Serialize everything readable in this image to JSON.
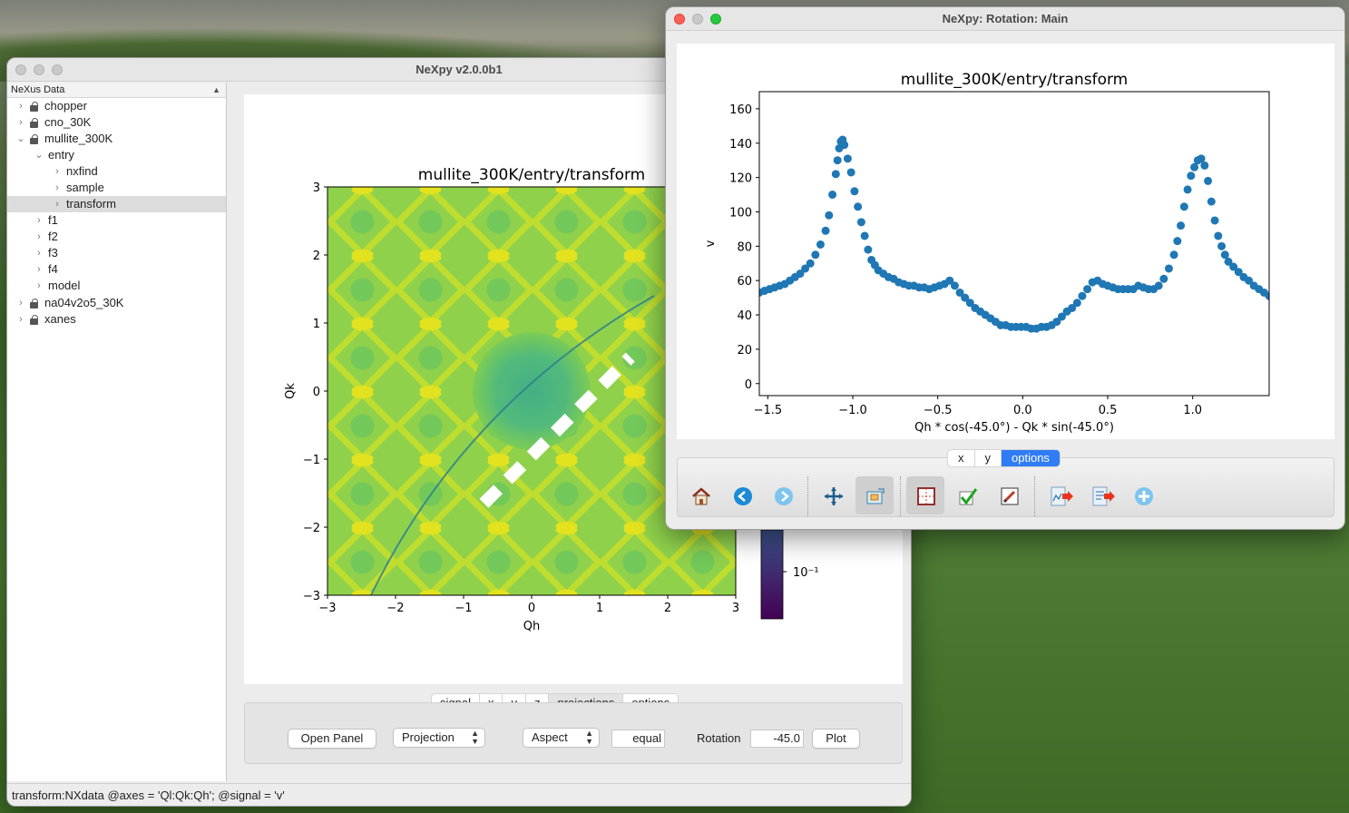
{
  "main_window": {
    "title": "NeXpy v2.0.0b1",
    "tree_header": "NeXus Data",
    "tree": [
      {
        "label": "chopper",
        "level": 0,
        "expanded": false,
        "locked": true,
        "selected": false
      },
      {
        "label": "cno_30K",
        "level": 0,
        "expanded": false,
        "locked": true,
        "selected": false
      },
      {
        "label": "mullite_300K",
        "level": 0,
        "expanded": true,
        "locked": true,
        "selected": false
      },
      {
        "label": "entry",
        "level": 1,
        "expanded": true,
        "locked": false,
        "selected": false
      },
      {
        "label": "nxfind",
        "level": 2,
        "expanded": false,
        "locked": false,
        "selected": false
      },
      {
        "label": "sample",
        "level": 2,
        "expanded": false,
        "locked": false,
        "selected": false
      },
      {
        "label": "transform",
        "level": 2,
        "expanded": false,
        "locked": false,
        "selected": true
      },
      {
        "label": "f1",
        "level": 1,
        "expanded": false,
        "locked": false,
        "selected": false
      },
      {
        "label": "f2",
        "level": 1,
        "expanded": false,
        "locked": false,
        "selected": false
      },
      {
        "label": "f3",
        "level": 1,
        "expanded": false,
        "locked": false,
        "selected": false
      },
      {
        "label": "f4",
        "level": 1,
        "expanded": false,
        "locked": false,
        "selected": false
      },
      {
        "label": "model",
        "level": 1,
        "expanded": false,
        "locked": false,
        "selected": false
      },
      {
        "label": "na04v2o5_30K",
        "level": 0,
        "expanded": false,
        "locked": true,
        "selected": false
      },
      {
        "label": "xanes",
        "level": 0,
        "expanded": false,
        "locked": true,
        "selected": false
      }
    ],
    "tabs": [
      "signal",
      "x",
      "y",
      "z",
      "projections",
      "options"
    ],
    "active_tab": "projections",
    "controls": {
      "open_panel": "Open Panel",
      "projection": "Projection",
      "aspect": "Aspect",
      "aspect_value": "equal",
      "rotation_label": "Rotation",
      "rotation_value": "-45.0",
      "plot": "Plot"
    },
    "status": "transform:NXdata @axes = 'Ql:Qk:Qh'; @signal = 'v'"
  },
  "rotation_window": {
    "title": "NeXpy: Rotation: Main",
    "tabs": [
      "x",
      "y",
      "options"
    ],
    "active_tab": "options",
    "toolbar": [
      "home-icon",
      "back-icon",
      "forward-icon",
      "pan-icon",
      "zoom-icon",
      "subplots-icon",
      "check-icon",
      "edit-icon",
      "export-icon",
      "save-icon",
      "add-icon"
    ]
  },
  "chart_data": [
    {
      "type": "heatmap",
      "title": "mullite_300K/entry/transform",
      "xlabel": "Qh",
      "ylabel": "Qk",
      "xlim": [
        -3,
        3
      ],
      "ylim": [
        -3,
        3
      ],
      "xticks": [
        "−3",
        "−2",
        "−1",
        "0",
        "1",
        "2",
        "3"
      ],
      "yticks": [
        "−3",
        "−2",
        "−1",
        "0",
        "1",
        "2",
        "3"
      ],
      "colorbar_tick": "10⁻¹",
      "rotation_line": {
        "x": [
          -0.7,
          1.45
        ],
        "y": [
          -1.65,
          0.5
        ]
      }
    },
    {
      "type": "scatter",
      "title": "mullite_300K/entry/transform",
      "xlabel": "Qh * cos(-45.0°) - Qk * sin(-45.0°)",
      "ylabel": "v",
      "xlim": [
        -1.55,
        1.45
      ],
      "ylim": [
        -7,
        170
      ],
      "xticks": [
        "−1.5",
        "−1.0",
        "−0.5",
        "0.0",
        "0.5",
        "1.0"
      ],
      "yticks": [
        "0",
        "20",
        "40",
        "60",
        "80",
        "100",
        "120",
        "140",
        "160"
      ],
      "color": "#1f77b4",
      "points": [
        [
          -1.55,
          53
        ],
        [
          -1.52,
          54
        ],
        [
          -1.49,
          55
        ],
        [
          -1.46,
          56
        ],
        [
          -1.43,
          57
        ],
        [
          -1.4,
          58
        ],
        [
          -1.37,
          60
        ],
        [
          -1.34,
          62
        ],
        [
          -1.31,
          64
        ],
        [
          -1.28,
          67
        ],
        [
          -1.25,
          70
        ],
        [
          -1.22,
          75
        ],
        [
          -1.19,
          81
        ],
        [
          -1.16,
          89
        ],
        [
          -1.14,
          98
        ],
        [
          -1.12,
          110
        ],
        [
          -1.1,
          122
        ],
        [
          -1.09,
          130
        ],
        [
          -1.08,
          137
        ],
        [
          -1.07,
          141
        ],
        [
          -1.06,
          142
        ],
        [
          -1.05,
          139
        ],
        [
          -1.03,
          131
        ],
        [
          -1.01,
          123
        ],
        [
          -0.99,
          112
        ],
        [
          -0.97,
          103
        ],
        [
          -0.95,
          94
        ],
        [
          -0.93,
          86
        ],
        [
          -0.91,
          78
        ],
        [
          -0.89,
          72
        ],
        [
          -0.87,
          69
        ],
        [
          -0.85,
          66
        ],
        [
          -0.82,
          64
        ],
        [
          -0.79,
          62
        ],
        [
          -0.76,
          61
        ],
        [
          -0.73,
          59
        ],
        [
          -0.7,
          58
        ],
        [
          -0.67,
          57
        ],
        [
          -0.64,
          57
        ],
        [
          -0.61,
          56
        ],
        [
          -0.58,
          56
        ],
        [
          -0.55,
          55
        ],
        [
          -0.52,
          56
        ],
        [
          -0.49,
          57
        ],
        [
          -0.46,
          58
        ],
        [
          -0.43,
          60
        ],
        [
          -0.4,
          57
        ],
        [
          -0.37,
          53
        ],
        [
          -0.34,
          50
        ],
        [
          -0.31,
          47
        ],
        [
          -0.28,
          44
        ],
        [
          -0.25,
          42
        ],
        [
          -0.22,
          40
        ],
        [
          -0.19,
          38
        ],
        [
          -0.16,
          36
        ],
        [
          -0.13,
          34
        ],
        [
          -0.1,
          34
        ],
        [
          -0.07,
          33
        ],
        [
          -0.04,
          33
        ],
        [
          -0.01,
          33
        ],
        [
          0.02,
          33
        ],
        [
          0.05,
          32
        ],
        [
          0.08,
          32
        ],
        [
          0.11,
          33
        ],
        [
          0.14,
          33
        ],
        [
          0.17,
          34
        ],
        [
          0.2,
          36
        ],
        [
          0.23,
          39
        ],
        [
          0.26,
          42
        ],
        [
          0.29,
          44
        ],
        [
          0.32,
          47
        ],
        [
          0.35,
          51
        ],
        [
          0.38,
          55
        ],
        [
          0.41,
          59
        ],
        [
          0.44,
          60
        ],
        [
          0.47,
          58
        ],
        [
          0.5,
          57
        ],
        [
          0.53,
          56
        ],
        [
          0.56,
          55
        ],
        [
          0.59,
          55
        ],
        [
          0.62,
          55
        ],
        [
          0.65,
          55
        ],
        [
          0.68,
          57
        ],
        [
          0.71,
          56
        ],
        [
          0.74,
          55
        ],
        [
          0.77,
          55
        ],
        [
          0.8,
          57
        ],
        [
          0.83,
          61
        ],
        [
          0.86,
          67
        ],
        [
          0.89,
          75
        ],
        [
          0.91,
          83
        ],
        [
          0.93,
          92
        ],
        [
          0.95,
          103
        ],
        [
          0.97,
          113
        ],
        [
          0.99,
          121
        ],
        [
          1.01,
          126
        ],
        [
          1.03,
          130
        ],
        [
          1.05,
          131
        ],
        [
          1.07,
          127
        ],
        [
          1.09,
          118
        ],
        [
          1.11,
          106
        ],
        [
          1.13,
          95
        ],
        [
          1.15,
          86
        ],
        [
          1.17,
          80
        ],
        [
          1.19,
          75
        ],
        [
          1.21,
          71
        ],
        [
          1.24,
          68
        ],
        [
          1.27,
          65
        ],
        [
          1.3,
          62
        ],
        [
          1.33,
          60
        ],
        [
          1.36,
          57
        ],
        [
          1.39,
          55
        ],
        [
          1.42,
          53
        ],
        [
          1.45,
          51
        ]
      ]
    }
  ]
}
